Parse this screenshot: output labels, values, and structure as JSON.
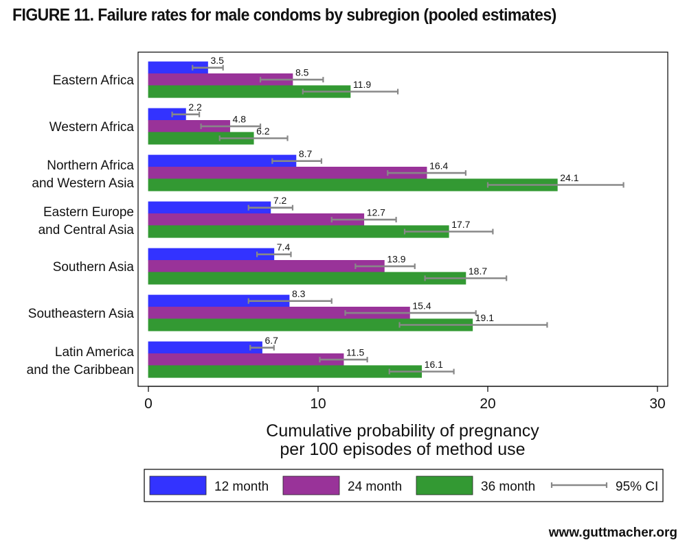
{
  "figure_title": "FIGURE 11. Failure rates for male condoms by subregion (pooled estimates)",
  "credit": "www.guttmacher.org",
  "colors": {
    "12 month": "#3333ff",
    "24 month": "#993399",
    "36 month": "#339933",
    "ci": "#888888"
  },
  "chart_data": {
    "type": "bar",
    "orientation": "horizontal",
    "title": "FIGURE 11. Failure rates for male condoms by subregion (pooled estimates)",
    "xlabel": "Cumulative probability of pregnancy per 100 episodes of method use",
    "xlabel_lines": [
      "Cumulative probability of pregnancy",
      "per 100 episodes of method use"
    ],
    "ylabel": "",
    "xlim": [
      0,
      30
    ],
    "xticks": [
      0,
      10,
      20,
      30
    ],
    "grid": false,
    "legend_position": "bottom",
    "categories": [
      [
        "Eastern Africa"
      ],
      [
        "Western Africa"
      ],
      [
        "Northern Africa",
        "and Western Asia"
      ],
      [
        "Eastern Europe",
        "and Central Asia"
      ],
      [
        "Southern Asia"
      ],
      [
        "Southeastern Asia"
      ],
      [
        "Latin America",
        "and the Caribbean"
      ]
    ],
    "series": [
      {
        "name": "12 month",
        "values": [
          3.5,
          2.2,
          8.7,
          7.2,
          7.4,
          8.3,
          6.7
        ],
        "ci_low": [
          2.6,
          1.4,
          7.3,
          5.9,
          6.4,
          5.9,
          6.0
        ],
        "ci_high": [
          4.4,
          3.0,
          10.2,
          8.5,
          8.4,
          10.8,
          7.4
        ]
      },
      {
        "name": "24 month",
        "values": [
          8.5,
          4.8,
          16.4,
          12.7,
          13.9,
          15.4,
          11.5
        ],
        "ci_low": [
          6.6,
          3.1,
          14.1,
          10.8,
          12.2,
          11.6,
          10.1
        ],
        "ci_high": [
          10.3,
          6.6,
          18.7,
          14.6,
          15.7,
          19.3,
          12.9
        ]
      },
      {
        "name": "36 month",
        "values": [
          11.9,
          6.2,
          24.1,
          17.7,
          18.7,
          19.1,
          16.1
        ],
        "ci_low": [
          9.1,
          4.2,
          20.0,
          15.1,
          16.3,
          14.8,
          14.2
        ],
        "ci_high": [
          14.7,
          8.2,
          28.0,
          20.3,
          21.1,
          23.5,
          18.0
        ]
      }
    ],
    "legend": [
      "12 month",
      "24 month",
      "36 month",
      "95% CI"
    ]
  }
}
